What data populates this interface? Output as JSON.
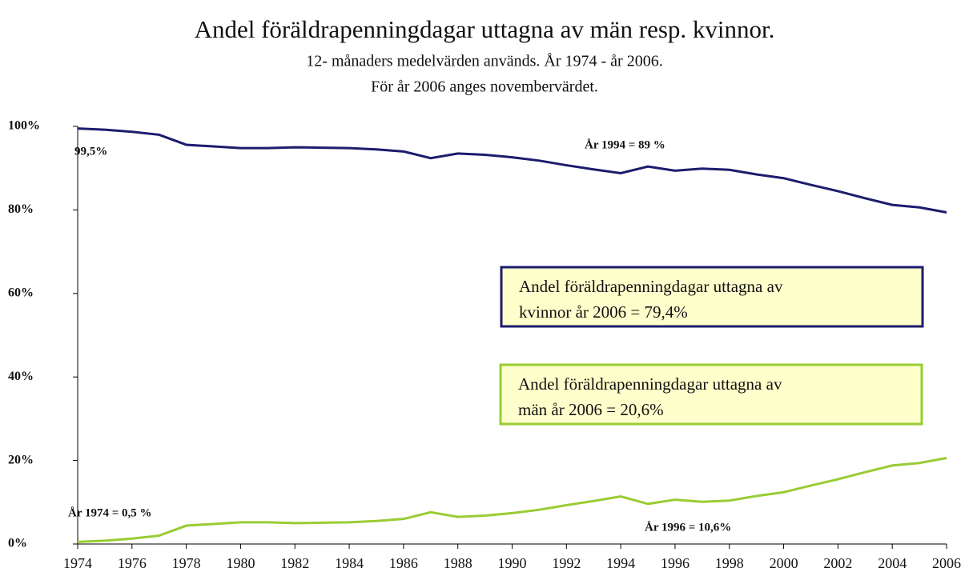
{
  "chart_data": {
    "type": "line",
    "title": "Andel föräldrapenningdagar uttagna av män resp. kvinnor.",
    "subtitle": [
      "12- månaders medelvärden används. År 1974 - år 2006.",
      "För år 2006 anges novembervärdet."
    ],
    "x": [
      1974,
      1975,
      1976,
      1977,
      1978,
      1979,
      1980,
      1981,
      1982,
      1983,
      1984,
      1985,
      1986,
      1987,
      1988,
      1989,
      1990,
      1991,
      1992,
      1993,
      1994,
      1995,
      1996,
      1997,
      1998,
      1999,
      2000,
      2001,
      2002,
      2003,
      2004,
      2005,
      2006
    ],
    "series": [
      {
        "color": "#1c1c6e",
        "values": [
          99.5,
          99.2,
          98.7,
          98.0,
          95.6,
          95.2,
          94.8,
          94.8,
          95.0,
          94.9,
          94.8,
          94.5,
          94.0,
          92.4,
          93.5,
          93.2,
          92.6,
          91.8,
          90.7,
          89.7,
          88.8,
          90.4,
          89.4,
          89.9,
          89.6,
          88.5,
          87.6,
          86.0,
          84.5,
          82.8,
          81.2,
          80.6,
          79.4
        ]
      },
      {
        "color": "#99cc33",
        "values": [
          0.5,
          0.8,
          1.3,
          2.0,
          4.4,
          4.8,
          5.2,
          5.2,
          5.0,
          5.1,
          5.2,
          5.5,
          6.0,
          7.6,
          6.5,
          6.8,
          7.4,
          8.2,
          9.3,
          10.3,
          11.4,
          9.6,
          10.6,
          10.1,
          10.4,
          11.5,
          12.4,
          14.0,
          15.5,
          17.2,
          18.8,
          19.4,
          20.6
        ]
      }
    ],
    "xlim": [
      1974,
      2006
    ],
    "xticks": [
      1974,
      1976,
      1978,
      1980,
      1982,
      1984,
      1986,
      1988,
      1990,
      1992,
      1994,
      1996,
      1998,
      2000,
      2002,
      2004,
      2006
    ],
    "ylim": [
      0,
      100
    ],
    "yticks": [
      {
        "value": 0,
        "label": "0%"
      },
      {
        "value": 20,
        "label": "20%"
      },
      {
        "value": 40,
        "label": "40%"
      },
      {
        "value": 60,
        "label": "60%"
      },
      {
        "value": 80,
        "label": "80%"
      },
      {
        "value": 100,
        "label": "100%"
      }
    ],
    "annotations": [
      "99,5%",
      "År 1994 = 89 %",
      "År 1974 = 0,5 %",
      "År 1996 = 10,6%"
    ],
    "boxes": [
      {
        "color": "#1c1c6e",
        "lines": [
          "Andel föräldrapenningdagar uttagna av",
          "kvinnor år 2006 = 79,4%"
        ]
      },
      {
        "color": "#99cc33",
        "lines": [
          "Andel föräldrapenningdagar uttagna av",
          "män år 2006 = 20,6%"
        ]
      }
    ]
  }
}
